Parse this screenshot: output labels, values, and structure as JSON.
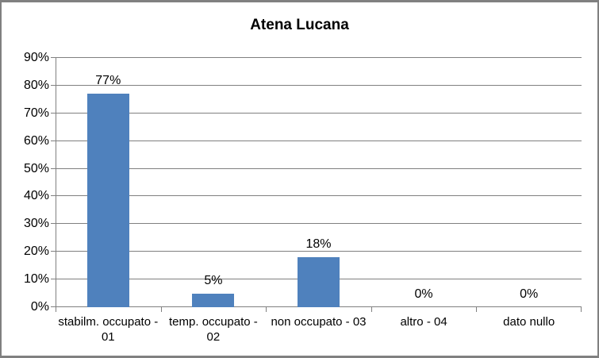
{
  "chart_data": {
    "type": "bar",
    "title": "Atena Lucana",
    "categories": [
      "stabilm. occupato - 01",
      "temp. occupato - 02",
      "non occupato - 03",
      "altro - 04",
      "dato nullo"
    ],
    "category_display_lines": [
      [
        "stabilm. occupato -",
        "01"
      ],
      [
        "temp. occupato -",
        "02"
      ],
      [
        "non occupato - 03"
      ],
      [
        "altro - 04"
      ],
      [
        "dato nullo"
      ]
    ],
    "values": [
      77,
      5,
      18,
      0,
      0
    ],
    "value_labels": [
      "77%",
      "5%",
      "18%",
      "0%",
      "0%"
    ],
    "unit": "%",
    "ylim": [
      0,
      90
    ],
    "ytick_step": 10,
    "ytick_labels": [
      "0%",
      "10%",
      "20%",
      "30%",
      "40%",
      "50%",
      "60%",
      "70%",
      "80%",
      "90%"
    ],
    "grid": true,
    "legend": false,
    "xlabel": "",
    "ylabel": "",
    "colors": {
      "bar": "#4F81BD",
      "gridline": "#808080",
      "axis": "#808080",
      "text": "#000000",
      "frame_border": "#808080",
      "background": "#FFFFFF"
    }
  }
}
